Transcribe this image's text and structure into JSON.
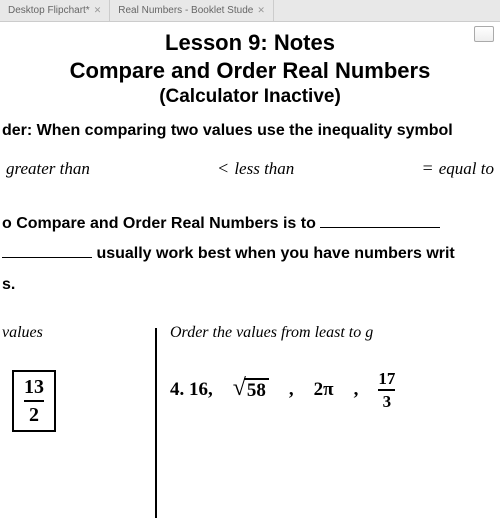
{
  "tabs": [
    {
      "label": "Desktop Flipchart*"
    },
    {
      "label": "Real Numbers - Booklet Stude"
    }
  ],
  "title": {
    "line1": "Lesson 9:  Notes",
    "line2": "Compare and Order Real Numbers",
    "line3": "(Calculator Inactive)"
  },
  "reminder": "der:  When comparing two values use the inequality symbol",
  "symbols": {
    "gt_label": "greater than",
    "lt_sign": "<",
    "lt_label": "less than",
    "eq_sign": "=",
    "eq_label": "equal to"
  },
  "body": {
    "line1_a": "o Compare and Order Real Numbers is to ",
    "line2_b": " usually work best when you have numbers writ",
    "line3": "s."
  },
  "left": {
    "header": "values",
    "fraction": {
      "num": "13",
      "den": "2"
    }
  },
  "right": {
    "header": "Order the values from least to g",
    "prob_label": "4.",
    "v1": "16,",
    "sqrt_arg": "58",
    "comma1": ",",
    "pi_coeff": "2π",
    "comma2": ",",
    "frac": {
      "num": "17",
      "den": "3"
    }
  }
}
